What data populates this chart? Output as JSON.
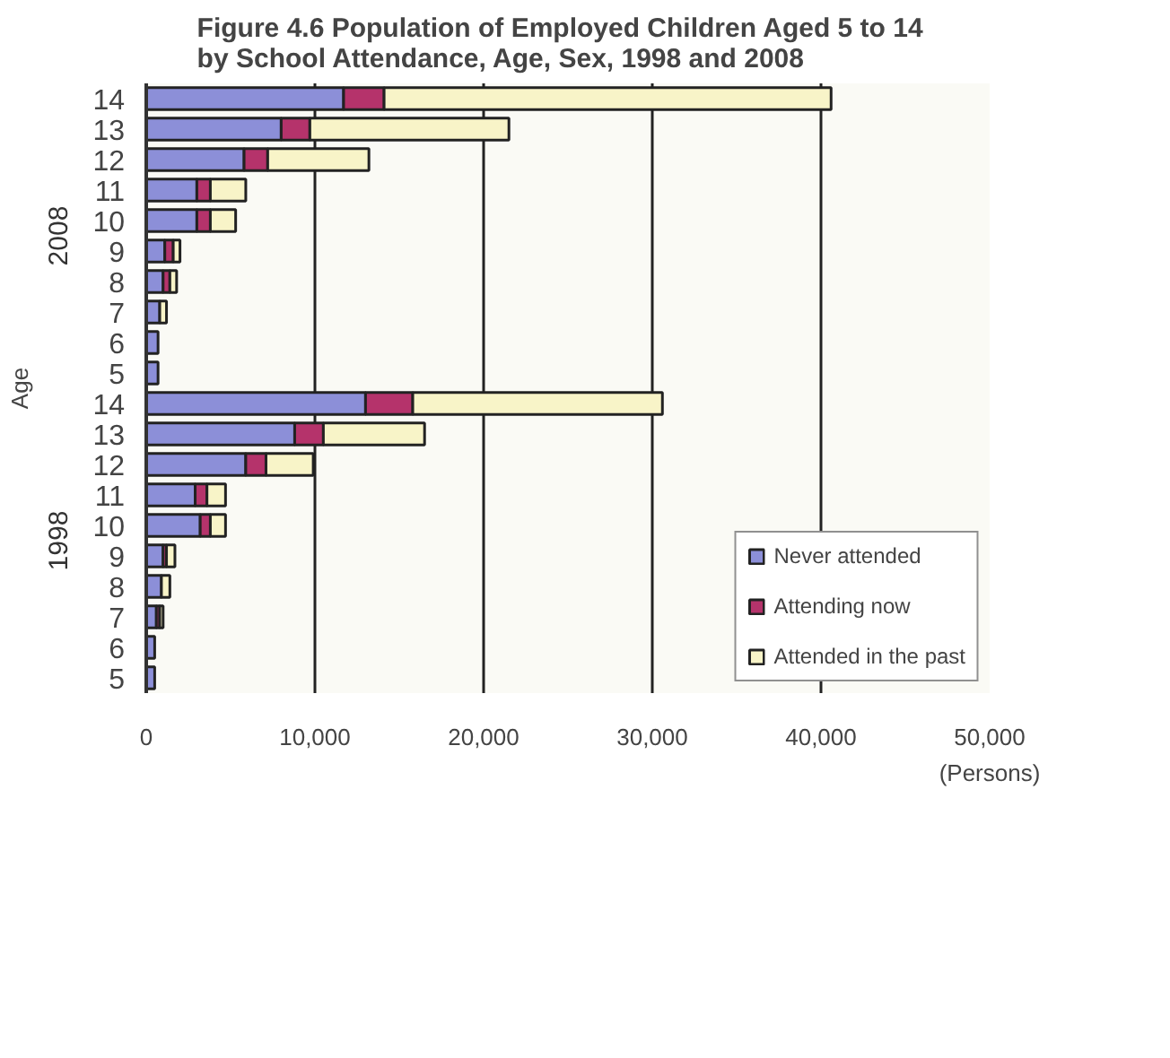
{
  "chart_data": {
    "type": "bar",
    "orientation": "horizontal",
    "stacked": true,
    "title": "Figure 4.6   Population of Employed Children Aged 5 to 14\nby School Attendance, Age, Sex, 1998 and 2008",
    "xlabel": "(Persons)",
    "ylabel": "Age",
    "annotations": [
      "2008",
      "1998"
    ],
    "categories": [
      "14",
      "13",
      "12",
      "11",
      "10",
      "9",
      "8",
      "7",
      "6",
      "5",
      "14",
      "13",
      "12",
      "11",
      "10",
      "9",
      "8",
      "7",
      "6",
      "5"
    ],
    "series": [
      {
        "name": "Never attended",
        "color": "#8c8fd8",
        "values": [
          11700,
          8000,
          5800,
          3000,
          3000,
          1100,
          1000,
          800,
          700,
          700,
          13000,
          8800,
          5900,
          2900,
          3200,
          1000,
          900,
          600,
          500,
          500
        ]
      },
      {
        "name": "Attending now",
        "color": "#b5336b",
        "values": [
          2400,
          1700,
          1400,
          800,
          800,
          500,
          400,
          null,
          0,
          0,
          2800,
          1700,
          1200,
          700,
          600,
          200,
          null,
          200,
          0,
          0
        ]
      },
      {
        "name": "Attended in the past",
        "color": "#f8f4c8",
        "values": [
          26500,
          11800,
          6000,
          2100,
          1500,
          400,
          400,
          400,
          0,
          0,
          14800,
          6000,
          2800,
          1100,
          900,
          500,
          500,
          200,
          0,
          0
        ]
      }
    ],
    "xlim": [
      0,
      50000
    ],
    "xticks": [
      {
        "value": 0,
        "label": "0"
      },
      {
        "value": 10000,
        "label": "10,000"
      },
      {
        "value": 20000,
        "label": "20,000"
      },
      {
        "value": 30000,
        "label": "30,000"
      },
      {
        "value": 40000,
        "label": "40,000"
      },
      {
        "value": 50000,
        "label": "50,000"
      }
    ],
    "grid": "x",
    "legend": "bottom right"
  }
}
